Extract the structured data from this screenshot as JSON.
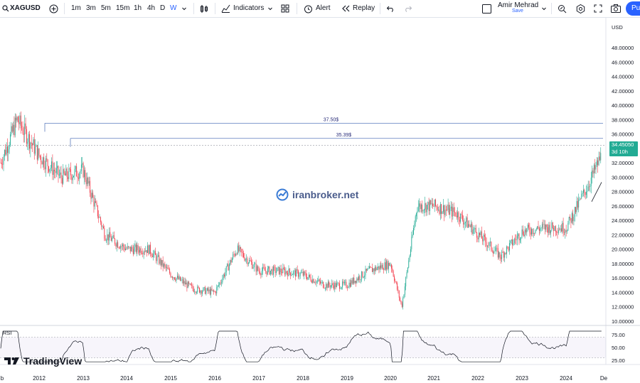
{
  "toolbar": {
    "symbol": "XAGUSD",
    "intervals": [
      "1m",
      "3m",
      "5m",
      "15m",
      "1h",
      "4h",
      "D",
      "W"
    ],
    "active_interval": "W",
    "indicators_label": "Indicators",
    "alert_label": "Alert",
    "replay_label": "Replay",
    "user_name": "Amir Mehrad",
    "save_label": "Save",
    "publish_label": "Pu"
  },
  "chart": {
    "currency": "USD",
    "price_ticks": [
      "48.00000",
      "46.00000",
      "44.00000",
      "42.00000",
      "40.00000",
      "38.00000",
      "36.00000",
      "34.00000",
      "32.00000",
      "30.00000",
      "28.00000",
      "26.00000",
      "24.00000",
      "22.00000",
      "20.00000",
      "18.00000",
      "16.00000",
      "14.00000",
      "12.00000",
      "10.00000"
    ],
    "levels": [
      {
        "label": "37.50$",
        "price": 37.5
      },
      {
        "label": "35.39$",
        "price": 35.39
      }
    ],
    "last_price": "34.45050",
    "countdown": "3d 10h",
    "watermark": "iranbroker.net",
    "branding": "TradingView",
    "year_ticks": [
      "b",
      "2012",
      "2013",
      "2014",
      "2015",
      "2016",
      "2017",
      "2018",
      "2019",
      "2020",
      "2021",
      "2022",
      "2023",
      "2024",
      "De"
    ],
    "rsi_label": "RSI",
    "rsi_ticks": [
      "75.00",
      "50.00",
      "25.00"
    ],
    "colors": {
      "up": "#22ab94",
      "down": "#f23645",
      "level": "#5b7bbd",
      "accent": "#2962ff"
    }
  },
  "chart_data": {
    "type": "candlestick",
    "symbol": "XAGUSD",
    "x": [
      "2011",
      "2011.5",
      "2012",
      "2012.5",
      "2013",
      "2013.5",
      "2014",
      "2014.5",
      "2015",
      "2015.5",
      "2016",
      "2016.5",
      "2017",
      "2017.5",
      "2018",
      "2018.5",
      "2019",
      "2019.5",
      "2020",
      "2020.25",
      "2020.6",
      "2021",
      "2021.5",
      "2022",
      "2022.5",
      "2023",
      "2023.5",
      "2024",
      "2024.5",
      "2024.9"
    ],
    "close": [
      30,
      38,
      33,
      30,
      31,
      22,
      20,
      20,
      16.5,
      14.5,
      14,
      20,
      17,
      17,
      16.5,
      15,
      15,
      17,
      18,
      12,
      26,
      26,
      25,
      22,
      19,
      22.5,
      23,
      23,
      29,
      34.45
    ],
    "ylim": [
      10,
      50
    ],
    "annotations": [
      {
        "label": "37.50$",
        "y": 37.5
      },
      {
        "label": "35.39$",
        "y": 35.39
      }
    ],
    "last_value": 34.4505,
    "rsi": {
      "ylim": [
        25,
        75
      ],
      "levels": [
        70,
        30
      ]
    }
  }
}
